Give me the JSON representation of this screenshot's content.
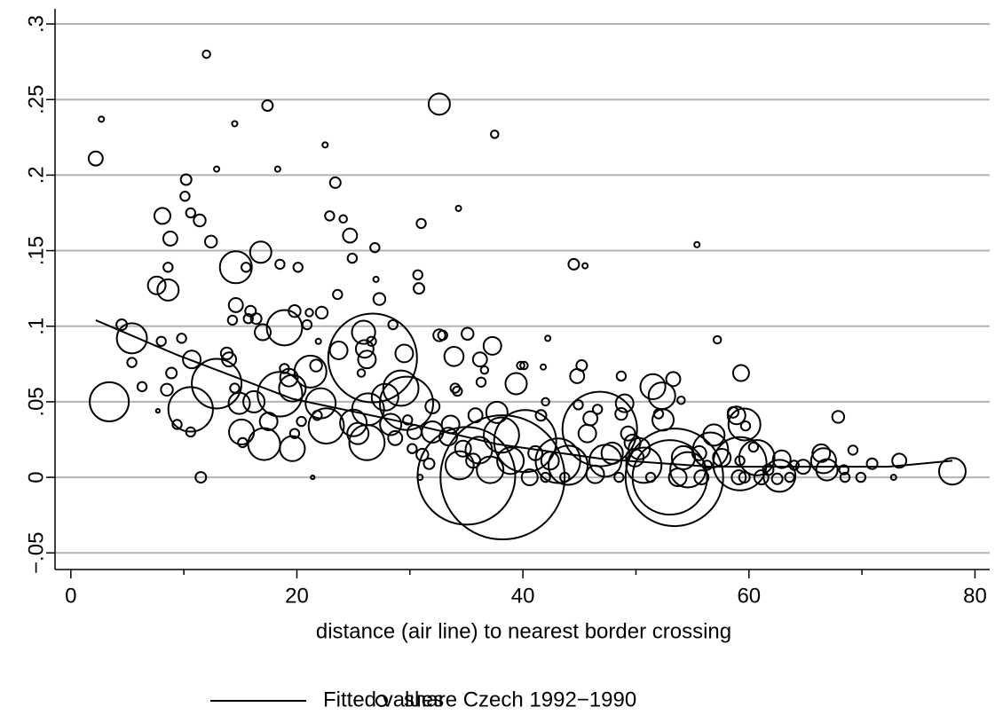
{
  "chart_data": {
    "type": "scatter",
    "x_label": "distance (air line) to nearest border crossing",
    "xlim": [
      -1.4,
      81.3
    ],
    "ylim": [
      -0.061,
      0.31
    ],
    "xticks": [
      0,
      20,
      40,
      60,
      80
    ],
    "xminorticks": [
      10,
      30,
      50,
      70
    ],
    "yticks": [
      {
        "value": -0.05,
        "label": "−.05"
      },
      0,
      {
        "value": 0.05,
        "label": ".05"
      },
      {
        "value": 0.1,
        "label": ".1"
      },
      {
        "value": 0.15,
        "label": ".15"
      },
      {
        "value": 0.2,
        "label": ".2"
      },
      {
        "value": 0.25,
        "label": ".25"
      },
      {
        "value": 0.3,
        "label": ".3"
      }
    ],
    "grid": true,
    "legend": "bottom",
    "series": [
      {
        "name": "Fitted values",
        "type": "line",
        "color": "#000000",
        "x": [
          2.2,
          9.4,
          19.6,
          29.1,
          37.7,
          47.2,
          56.6,
          72.3,
          78.0
        ],
        "values": [
          0.104,
          0.081,
          0.052,
          0.037,
          0.022,
          0.012,
          0.007,
          0.007,
          0.011
        ]
      },
      {
        "name": "share Czech 1992−1990",
        "type": "scatter",
        "color": "#000000",
        "x": [
          2.2,
          2.7,
          3.4,
          4.5,
          5.4,
          5.4,
          6.3,
          7.7,
          7.6,
          8.1,
          8.0,
          8.6,
          8.8,
          8.6,
          8.5,
          8.9,
          9.4,
          9.8,
          10.2,
          10.1,
          10.6,
          10.7,
          10.6,
          10.6,
          11.4,
          11.5,
          12.0,
          12.4,
          12.9,
          12.9,
          13.8,
          14.0,
          14.5,
          14.5,
          14.6,
          14.6,
          14.3,
          14.9,
          15.1,
          15.2,
          15.7,
          15.5,
          15.9,
          16.2,
          16.4,
          16.8,
          16.98,
          17.1,
          17.4,
          17.5,
          18.3,
          18.5,
          18.5,
          18.9,
          18.9,
          19.3,
          19.6,
          19.6,
          19.8,
          20.1,
          19.8,
          20.4,
          20.9,
          21.1,
          21.2,
          21.4,
          21.7,
          21.8,
          21.9,
          22.2,
          22.1,
          22.5,
          22.6,
          22.9,
          23.4,
          23.6,
          23.7,
          24.1,
          24.7,
          24.9,
          25.0,
          25.4,
          25.7,
          25.9,
          26.0,
          26.2,
          26.2,
          26.3,
          26.6,
          26.7,
          26.9,
          27.0,
          27.3,
          27.8,
          28.3,
          28.5,
          28.7,
          29.2,
          29.5,
          29.7,
          29.8,
          30.2,
          30.4,
          30.7,
          30.8,
          30.9,
          31.0,
          31.1,
          31.7,
          32.0,
          32.0,
          32.6,
          32.6,
          32.9,
          33.4,
          33.6,
          33.9,
          34.0,
          34.2,
          34.3,
          34.4,
          34.7,
          35.0,
          35.1,
          35.6,
          35.8,
          36.1,
          36.2,
          36.3,
          36.6,
          37.1,
          37.3,
          37.5,
          37.7,
          38.1,
          38.2,
          38.9,
          39.4,
          39.8,
          40.1,
          40.2,
          40.6,
          41.1,
          41.6,
          41.8,
          42.0,
          42.0,
          42.2,
          42.4,
          43.1,
          43.7,
          44.0,
          44.5,
          44.9,
          44.8,
          45.2,
          45.5,
          45.7,
          45.97,
          46.4,
          46.6,
          46.8,
          47.3,
          47.9,
          48.5,
          48.7,
          48.7,
          49.0,
          49.3,
          49.7,
          49.9,
          50.3,
          50.7,
          51.3,
          51.5,
          52.0,
          52.3,
          52.4,
          53.0,
          53.3,
          53.4,
          53.7,
          54.0,
          54.2,
          54.6,
          55.4,
          55.6,
          55.8,
          56.3,
          56.6,
          56.9,
          57.2,
          57.6,
          58.6,
          58.9,
          59.2,
          59.3,
          59.1,
          59.2,
          59.6,
          59.6,
          59.7,
          60.4,
          60.7,
          61.1,
          61.7,
          62.5,
          62.9,
          62.7,
          63.6,
          64.0,
          64.8,
          66.4,
          66.6,
          66.9,
          67.9,
          68.4,
          68.5,
          69.2,
          69.9,
          70.9,
          72.8,
          73.3,
          78.0
        ],
        "values": [
          0.211,
          0.237,
          0.05,
          0.101,
          0.092,
          0.076,
          0.06,
          0.044,
          0.127,
          0.173,
          0.09,
          0.124,
          0.158,
          0.139,
          0.058,
          0.069,
          0.035,
          0.092,
          0.197,
          0.186,
          0.175,
          0.078,
          0.03,
          0.045,
          0.17,
          0,
          0.28,
          0.156,
          0.062,
          0.204,
          0.082,
          0.078,
          0.059,
          0.234,
          0.139,
          0.114,
          0.104,
          0.049,
          0.03,
          0.023,
          0.105,
          0.139,
          0.11,
          0.05,
          0.105,
          0.149,
          0.096,
          0.022,
          0.246,
          0.037,
          0.204,
          0.141,
          0.055,
          0.099,
          0.072,
          0.066,
          0.019,
          0.059,
          0.11,
          0.139,
          0.029,
          0.037,
          0.101,
          0.109,
          0.07,
          0,
          0.074,
          0.041,
          0.09,
          0.109,
          0.049,
          0.22,
          0.034,
          0.173,
          0.195,
          0.121,
          0.084,
          0.171,
          0.16,
          0.145,
          0.036,
          0.029,
          0.069,
          0.096,
          0.085,
          0.078,
          0.023,
          0.045,
          0.09,
          0.079,
          0.152,
          0.131,
          0.118,
          0.053,
          0.035,
          0.101,
          0.026,
          0.059,
          0.082,
          0.049,
          0.038,
          0.019,
          0.03,
          0.134,
          0.125,
          0,
          0.168,
          0.015,
          0.009,
          0.047,
          0.03,
          0.247,
          0.094,
          0.094,
          0.027,
          0.035,
          0.08,
          0.059,
          0.057,
          0.178,
          0.008,
          0.019,
          0.001,
          0.095,
          0.011,
          0.041,
          0.018,
          0.078,
          0.063,
          0.071,
          0.005,
          0.087,
          0.227,
          0.043,
          0.028,
          0,
          0.011,
          0.062,
          0.074,
          0.074,
          0.024,
          0,
          0.016,
          0.041,
          0.073,
          0,
          0.05,
          0.092,
          0.011,
          0.011,
          0,
          0.008,
          0.141,
          0.048,
          0.067,
          0.074,
          0.14,
          0.029,
          0.039,
          0.002,
          0.045,
          0.032,
          0.011,
          0.016,
          0,
          0.067,
          0.042,
          0.049,
          0.029,
          0.023,
          0.013,
          0.019,
          0.008,
          0,
          0.06,
          0.042,
          0.054,
          0.038,
          0,
          0.065,
          0,
          0,
          0.051,
          0.013,
          0.005,
          0.154,
          0.016,
          0,
          0.008,
          0.018,
          0.028,
          0.091,
          0.013,
          0.043,
          0.041,
          0.009,
          0.069,
          0,
          0.011,
          0,
          0.035,
          0.034,
          0.02,
          0.013,
          0,
          0.005,
          -0.001,
          0.012,
          0.001,
          0,
          0.008,
          0.007,
          0.016,
          0.011,
          0.005,
          0.04,
          0.005,
          0,
          0.018,
          0,
          0.009,
          0,
          0.011,
          0.004
        ],
        "sizes": [
          7,
          1,
          54,
          4,
          32,
          3,
          3,
          0.5,
          11,
          9,
          3,
          16,
          7,
          3,
          5,
          4,
          3,
          3,
          4,
          3,
          3,
          11,
          3,
          70,
          5,
          4,
          2,
          5,
          87,
          1,
          5,
          7,
          3,
          1,
          36,
          7,
          3,
          16,
          22,
          3,
          3,
          3,
          4,
          16,
          4,
          16,
          9,
          36,
          4,
          11,
          1,
          3,
          70,
          44,
          3,
          11,
          22,
          25,
          5,
          3,
          3,
          3,
          3,
          2,
          36,
          0.5,
          5,
          3,
          1,
          5,
          32,
          1,
          44,
          3,
          4,
          3,
          11,
          2,
          7,
          3,
          25,
          16,
          2,
          19,
          11,
          11,
          44,
          36,
          3,
          278,
          3,
          1,
          5,
          25,
          16,
          3,
          7,
          44,
          11,
          100,
          3,
          3,
          7,
          3,
          4,
          1,
          3,
          5,
          4,
          7,
          16,
          16,
          5,
          3,
          11,
          11,
          13,
          3,
          3,
          1,
          28,
          9,
          336,
          5,
          7,
          7,
          25,
          7,
          3,
          2,
          25,
          11,
          2,
          16,
          44,
          544,
          25,
          16,
          2,
          2,
          136,
          9,
          7,
          4,
          1,
          3,
          2,
          1,
          11,
          70,
          3,
          54,
          4,
          3,
          7,
          4,
          1,
          11,
          7,
          11,
          3,
          196,
          36,
          16,
          3,
          3,
          5,
          11,
          7,
          9,
          11,
          16,
          44,
          3,
          22,
          3,
          25,
          16,
          196,
          7,
          336,
          11,
          2,
          19,
          44,
          1,
          7,
          7,
          3,
          44,
          16,
          2,
          11,
          4,
          11,
          100,
          9,
          7,
          3,
          4,
          36,
          3,
          3,
          44,
          7,
          4,
          4,
          11,
          36,
          3,
          3,
          7,
          11,
          22,
          16,
          5,
          3,
          3,
          3,
          3,
          4,
          1,
          7,
          25
        ]
      }
    ]
  }
}
